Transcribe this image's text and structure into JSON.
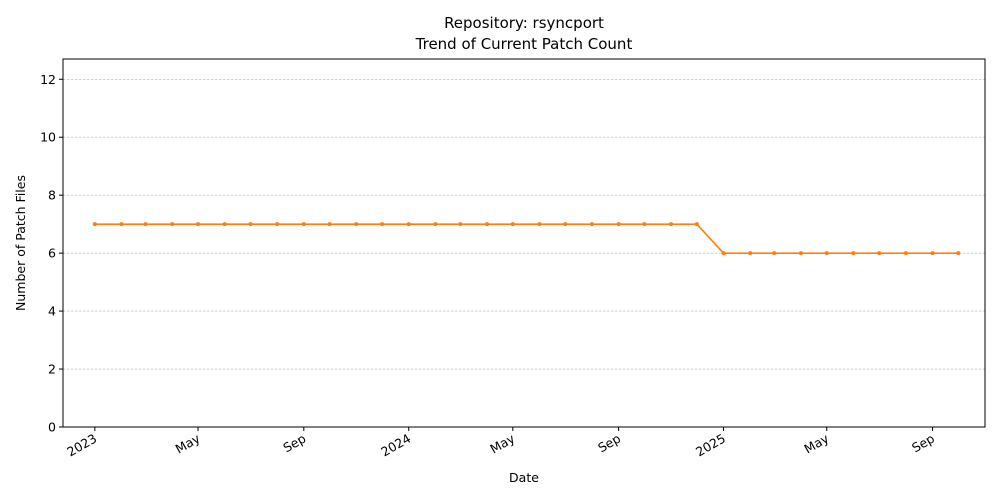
{
  "chart_data": {
    "type": "line",
    "title": "Repository: rsyncport",
    "subtitle": "Trend of Current Patch Count",
    "xlabel": "Date",
    "ylabel": "Number of Patch Files",
    "ylim": [
      0,
      12.7
    ],
    "xlim": [
      "2022-11-25",
      "2025-11-01"
    ],
    "yticks": [
      0,
      2,
      4,
      6,
      8,
      10,
      12
    ],
    "xticks": [
      {
        "date": "2023-01-01",
        "label": "2023"
      },
      {
        "date": "2023-05-01",
        "label": "May"
      },
      {
        "date": "2023-09-01",
        "label": "Sep"
      },
      {
        "date": "2024-01-01",
        "label": "2024"
      },
      {
        "date": "2024-05-01",
        "label": "May"
      },
      {
        "date": "2024-09-01",
        "label": "Sep"
      },
      {
        "date": "2025-01-01",
        "label": "2025"
      },
      {
        "date": "2025-05-01",
        "label": "May"
      },
      {
        "date": "2025-09-01",
        "label": "Sep"
      }
    ],
    "grid": "horizontal-dashed",
    "line_color": "#ff7f0e",
    "series": [
      {
        "x": [
          "2023-01-01",
          "2023-02-01",
          "2023-03-01",
          "2023-04-01",
          "2023-05-01",
          "2023-06-01",
          "2023-07-01",
          "2023-08-01",
          "2023-09-01",
          "2023-10-01",
          "2023-11-01",
          "2023-12-01",
          "2024-01-01",
          "2024-02-01",
          "2024-03-01",
          "2024-04-01",
          "2024-05-01",
          "2024-06-01",
          "2024-07-01",
          "2024-08-01",
          "2024-09-01",
          "2024-10-01",
          "2024-11-01",
          "2024-12-01",
          "2025-01-01",
          "2025-02-01",
          "2025-03-01",
          "2025-04-01",
          "2025-05-01",
          "2025-06-01",
          "2025-07-01",
          "2025-08-01",
          "2025-09-01",
          "2025-10-01"
        ],
        "values": [
          7,
          7,
          7,
          7,
          7,
          7,
          7,
          7,
          7,
          7,
          7,
          7,
          7,
          7,
          7,
          7,
          7,
          7,
          7,
          7,
          7,
          7,
          7,
          7,
          6,
          6,
          6,
          6,
          6,
          6,
          6,
          6,
          6,
          6
        ]
      }
    ]
  }
}
